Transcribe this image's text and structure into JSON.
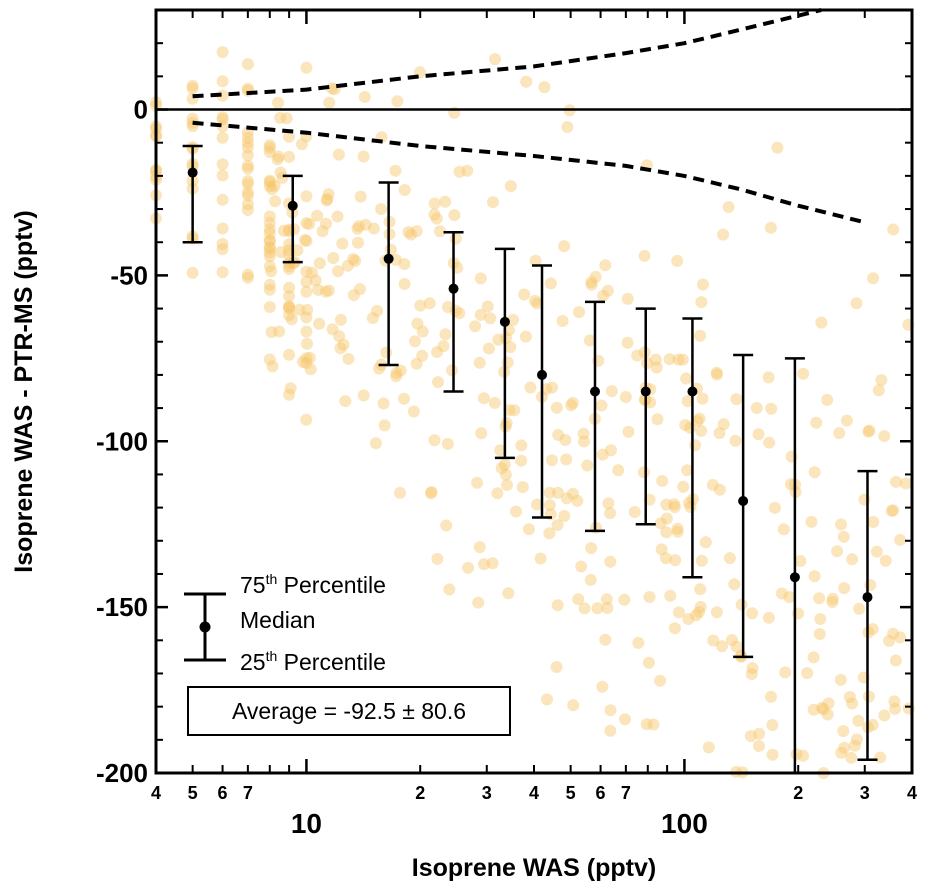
{
  "chart_data": {
    "type": "scatter",
    "xlabel": "Isoprene WAS (pptv)",
    "ylabel": "Isoprene WAS - PTR-MS (pptv)",
    "xscale": "log",
    "xlim": [
      4,
      400
    ],
    "ylim": [
      -200,
      30
    ],
    "x_major_ticks": [
      {
        "value": 10,
        "label": "10"
      },
      {
        "value": 100,
        "label": "100"
      }
    ],
    "x_minor_ticks": [
      {
        "value": 4,
        "label": "4"
      },
      {
        "value": 5,
        "label": "5"
      },
      {
        "value": 6,
        "label": "6"
      },
      {
        "value": 7,
        "label": "7"
      },
      {
        "value": 20,
        "label": "2"
      },
      {
        "value": 30,
        "label": "3"
      },
      {
        "value": 40,
        "label": "4"
      },
      {
        "value": 50,
        "label": "5"
      },
      {
        "value": 60,
        "label": "6"
      },
      {
        "value": 70,
        "label": "7"
      },
      {
        "value": 200,
        "label": "2"
      },
      {
        "value": 300,
        "label": "3"
      },
      {
        "value": 400,
        "label": "4"
      }
    ],
    "y_ticks": [
      {
        "value": 0,
        "label": "0"
      },
      {
        "value": -50,
        "label": "-50"
      },
      {
        "value": -100,
        "label": "-100"
      },
      {
        "value": -150,
        "label": "-150"
      },
      {
        "value": -200,
        "label": "-200"
      }
    ],
    "zero_line": 0,
    "scatter_color": "#f7c56a",
    "percentile_bins": [
      {
        "x": 5.0,
        "p25": -40,
        "median": -19,
        "p75": -11
      },
      {
        "x": 9.2,
        "p25": -46,
        "median": -29,
        "p75": -20
      },
      {
        "x": 16.5,
        "p25": -77,
        "median": -45,
        "p75": -22
      },
      {
        "x": 24.5,
        "p25": -85,
        "median": -54,
        "p75": -37
      },
      {
        "x": 33.5,
        "p25": -105,
        "median": -64,
        "p75": -42
      },
      {
        "x": 42,
        "p25": -123,
        "median": -80,
        "p75": -47
      },
      {
        "x": 58,
        "p25": -127,
        "median": -85,
        "p75": -58
      },
      {
        "x": 79,
        "p25": -125,
        "median": -85,
        "p75": -60
      },
      {
        "x": 105,
        "p25": -141,
        "median": -85,
        "p75": -63
      },
      {
        "x": 143,
        "p25": -165,
        "median": -118,
        "p75": -74
      },
      {
        "x": 196,
        "p25": -200,
        "median": -141,
        "p75": -75
      },
      {
        "x": 305,
        "p25": -196,
        "median": -147,
        "p75": -109
      }
    ],
    "upper_dashed_line": {
      "x": [
        5,
        10,
        20,
        40,
        70,
        100,
        140,
        230
      ],
      "y": [
        4,
        6,
        10,
        13,
        17,
        20,
        24,
        30
      ]
    },
    "lower_dashed_line": {
      "x": [
        5,
        10,
        20,
        40,
        70,
        100,
        140,
        200,
        300
      ],
      "y": [
        -4,
        -7,
        -11,
        -14,
        -17,
        -20,
        -24,
        -29,
        -34
      ]
    },
    "legend": {
      "p75_label": "75",
      "p75_sup": "th",
      "p75_suffix": " Percentile",
      "median_label": "Median",
      "p25_label": "25",
      "p25_sup": "th",
      "p25_suffix": " Percentile"
    },
    "annotation": "Average = -92.5 ± 80.6"
  }
}
